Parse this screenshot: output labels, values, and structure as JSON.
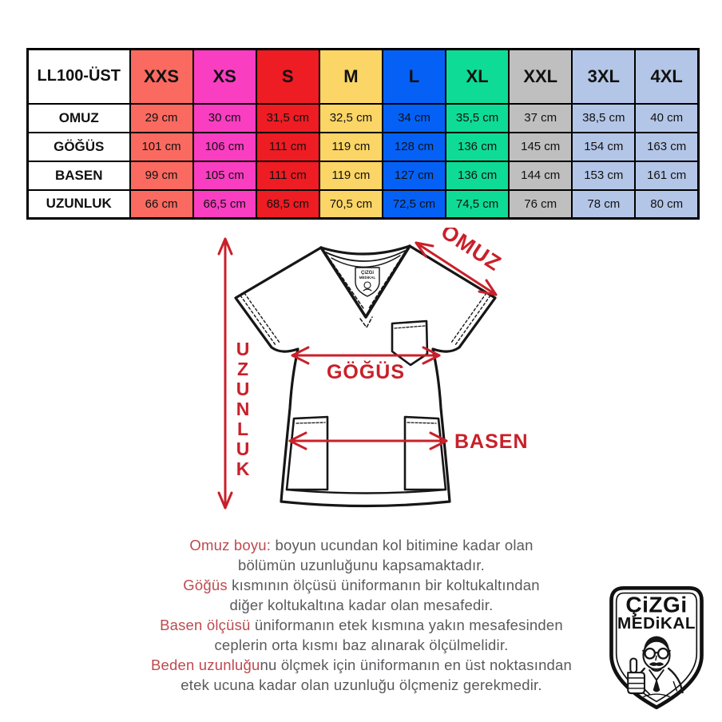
{
  "table": {
    "corner_label": "LL100-ÜST",
    "columns": [
      {
        "label": "XXS",
        "color": "#fa6a60"
      },
      {
        "label": "XS",
        "color": "#f93ec2"
      },
      {
        "label": "S",
        "color": "#ee1c23"
      },
      {
        "label": "M",
        "color": "#fbd566"
      },
      {
        "label": "L",
        "color": "#0561f5"
      },
      {
        "label": "XL",
        "color": "#0edc96"
      },
      {
        "label": "XXL",
        "color": "#bfbfbf"
      },
      {
        "label": "3XL",
        "color": "#b4c6e7"
      },
      {
        "label": "4XL",
        "color": "#b4c6e7"
      }
    ],
    "rows": [
      {
        "label": "OMUZ",
        "values": [
          "29 cm",
          "30 cm",
          "31,5 cm",
          "32,5 cm",
          "34 cm",
          "35,5 cm",
          "37 cm",
          "38,5 cm",
          "40 cm"
        ]
      },
      {
        "label": "GÖĞÜS",
        "values": [
          "101 cm",
          "106 cm",
          "111 cm",
          "119 cm",
          "128 cm",
          "136 cm",
          "145 cm",
          "154 cm",
          "163 cm"
        ]
      },
      {
        "label": "BASEN",
        "values": [
          "99 cm",
          "105 cm",
          "111 cm",
          "119 cm",
          "127 cm",
          "136 cm",
          "144 cm",
          "153 cm",
          "161 cm"
        ]
      },
      {
        "label": "UZUNLUK",
        "values": [
          "66 cm",
          "66,5 cm",
          "68,5 cm",
          "70,5 cm",
          "72,5 cm",
          "74,5 cm",
          "76 cm",
          "78 cm",
          "80 cm"
        ]
      }
    ]
  },
  "diagram": {
    "labels": {
      "shoulder": "OMUZ",
      "chest": "GÖĞÜS",
      "hip": "BASEN",
      "length": "UZUNLUK"
    },
    "arrow_color": "#c9202a"
  },
  "descriptions": [
    {
      "lead": "Omuz boyu:",
      "rest": " boyun ucundan kol bitimine kadar olan"
    },
    {
      "lead": "",
      "rest": "bölümün uzunluğunu kapsamaktadır."
    },
    {
      "lead": "Göğüs",
      "rest": " kısmının ölçüsü üniformanın bir koltukaltından"
    },
    {
      "lead": "",
      "rest": "diğer koltukaltına kadar olan mesafedir."
    },
    {
      "lead": "Basen ölçüsü",
      "rest": " üniformanın etek kısmına yakın mesafesinden"
    },
    {
      "lead": "",
      "rest": "ceplerin orta kısmı baz alınarak ölçülmelidir."
    },
    {
      "lead": "Beden uzunluğu",
      "rest": "nu ölçmek için üniformanın en üst noktasından"
    },
    {
      "lead": "",
      "rest": "etek ucuna kadar olan uzunluğu ölçmeniz gerekmedir."
    }
  ],
  "brand": {
    "line1": "ÇiZGi",
    "line2": "MEDiKAL"
  },
  "colors": {
    "text_gray": "#595a5c",
    "accent_red": "#bc4a4f",
    "arrow_red": "#c9202a"
  }
}
